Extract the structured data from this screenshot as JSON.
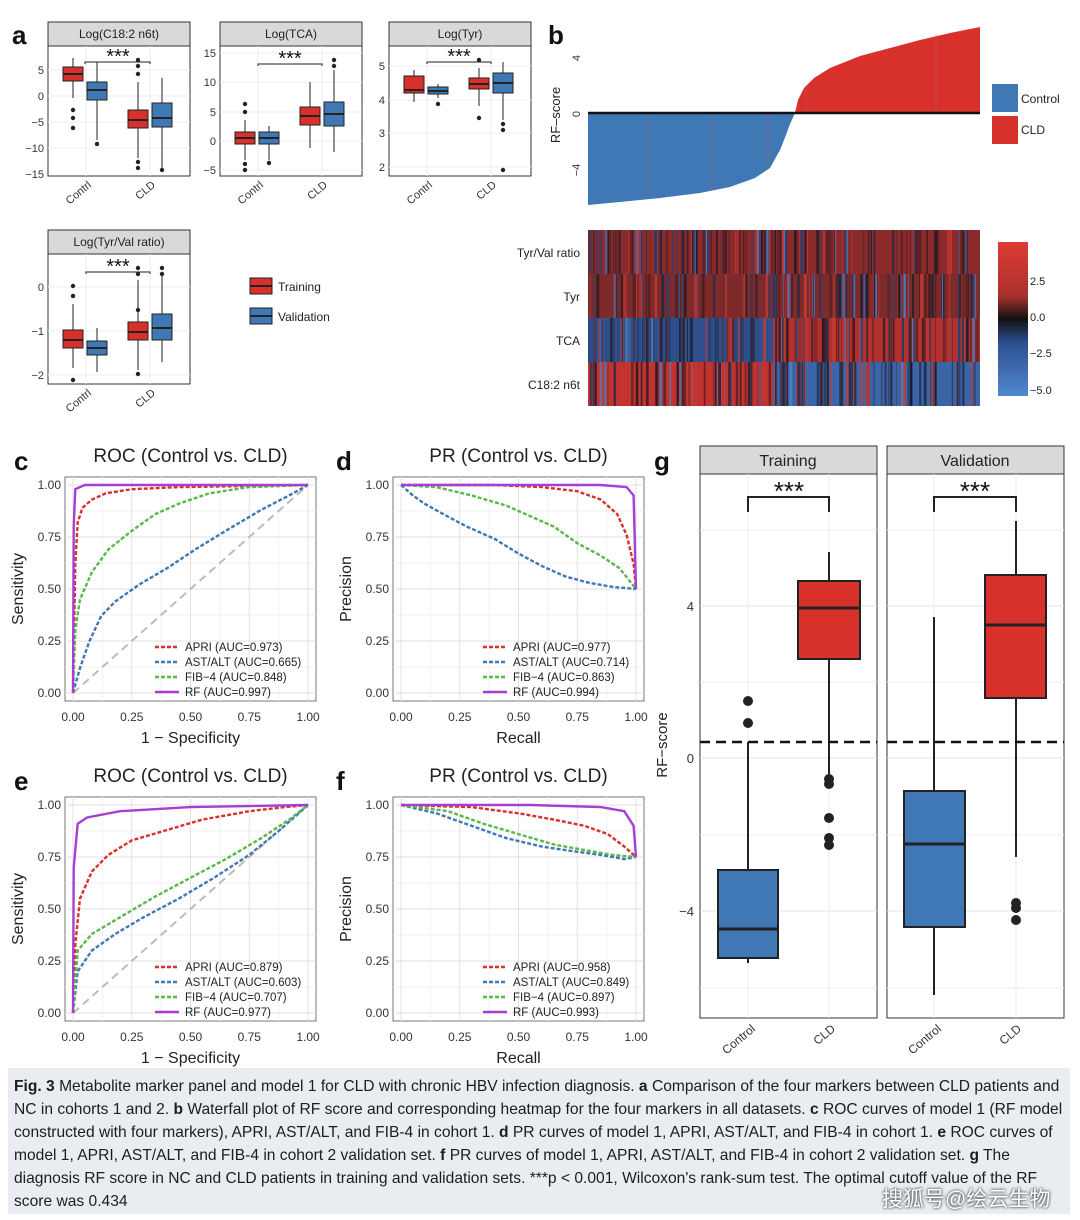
{
  "panel_letters": {
    "a": "a",
    "b": "b",
    "c": "c",
    "d": "d",
    "e": "e",
    "f": "f",
    "g": "g"
  },
  "sig_label": "***",
  "colors": {
    "training": "#d8312b",
    "validation": "#3f78b5",
    "apri": "#d8312b",
    "astalt": "#3f78b5",
    "fib4": "#5ab84a",
    "rf": "#a63fd0",
    "control_wf": "#3f78b5",
    "cld_wf": "#d8312b"
  },
  "panel_a": {
    "groups": [
      "Contrl",
      "CLD"
    ],
    "legend": {
      "training": "Training",
      "validation": "Validation"
    },
    "boxes": [
      {
        "title": "Log(C18:2 n6t)",
        "yticks": [
          "5",
          "0",
          "−5",
          "−10",
          "−15"
        ]
      },
      {
        "title": "Log(TCA)",
        "yticks": [
          "15",
          "10",
          "5",
          "0",
          "−5"
        ]
      },
      {
        "title": "Log(Tyr)",
        "yticks": [
          "5",
          "4",
          "3",
          "2"
        ]
      },
      {
        "title": "Log(Tyr/Val ratio)",
        "yticks": [
          "0",
          "−1",
          "−2"
        ]
      }
    ]
  },
  "panel_b": {
    "ylabel": "RF–score",
    "yticks": [
      "4",
      "0",
      "−4"
    ],
    "legend": {
      "control": "Control",
      "cld": "CLD"
    },
    "heatmap_rows": [
      "Tyr/Val ratio",
      "Tyr",
      "TCA",
      "C18:2 n6t"
    ],
    "colorbar_ticks": [
      "2.5",
      "0.0",
      "−2.5",
      "−5.0"
    ]
  },
  "panel_c": {
    "title": "ROC (Control vs. CLD)",
    "xlabel": "1 − Specificity",
    "ylabel": "Sensitivity",
    "xticks": [
      "0.00",
      "0.25",
      "0.50",
      "0.75",
      "1.00"
    ],
    "yticks": [
      "1.00",
      "0.75",
      "0.50",
      "0.25",
      "0.00"
    ],
    "legend": [
      "APRI (AUC=0.973)",
      "AST/ALT (AUC=0.665)",
      "FIB−4 (AUC=0.848)",
      "RF (AUC=0.997)"
    ]
  },
  "panel_d": {
    "title": "PR (Control vs. CLD)",
    "xlabel": "Recall",
    "ylabel": "Precision",
    "xticks": [
      "0.00",
      "0.25",
      "0.50",
      "0.75",
      "1.00"
    ],
    "yticks": [
      "1.00",
      "0.75",
      "0.50",
      "0.25",
      "0.00"
    ],
    "legend": [
      "APRI (AUC=0.977)",
      "AST/ALT (AUC=0.714)",
      "FIB−4 (AUC=0.863)",
      "RF (AUC=0.994)"
    ]
  },
  "panel_e": {
    "title": "ROC (Control vs. CLD)",
    "xlabel": "1 − Specificity",
    "ylabel": "Sensitivity",
    "xticks": [
      "0.00",
      "0.25",
      "0.50",
      "0.75",
      "1.00"
    ],
    "yticks": [
      "1.00",
      "0.75",
      "0.50",
      "0.25",
      "0.00"
    ],
    "legend": [
      "APRI (AUC=0.879)",
      "AST/ALT (AUC=0.603)",
      "FIB−4 (AUC=0.707)",
      "RF (AUC=0.977)"
    ]
  },
  "panel_f": {
    "title": "PR (Control vs. CLD)",
    "xlabel": "Recall",
    "ylabel": "Precision",
    "xticks": [
      "0.00",
      "0.25",
      "0.50",
      "0.75",
      "1.00"
    ],
    "yticks": [
      "1.00",
      "0.75",
      "0.50",
      "0.25",
      "0.00"
    ],
    "legend": [
      "APRI (AUC=0.958)",
      "AST/ALT (AUC=0.849)",
      "FIB−4 (AUC=0.897)",
      "RF (AUC=0.993)"
    ]
  },
  "panel_g": {
    "facets": [
      "Training",
      "Validation"
    ],
    "ylabel": "RF−score",
    "yticks": [
      "4",
      "0",
      "−4"
    ],
    "groups": [
      "Control",
      "CLD"
    ],
    "cutoff": 0.434
  },
  "caption": {
    "fig_label": "Fig. 3",
    "text": " Metabolite marker panel and model 1 for CLD with chronic HBV infection diagnosis. ",
    "a_label": "a",
    "a_text": " Comparison of the four markers between CLD patients and NC in cohorts 1 and 2. ",
    "b_label": "b",
    "b_text": " Waterfall plot of RF score and corresponding heatmap for the four markers in all datasets. ",
    "c_label": "c",
    "c_text": " ROC curves of model 1 (RF model constructed with four markers), APRI, AST/ALT, and FIB-4 in cohort 1. ",
    "d_label": "d",
    "d_text": " PR curves of model 1, APRI, AST/ALT, and FIB-4 in cohort 1. ",
    "e_label": "e",
    "e_text": " ROC curves of model 1, APRI, AST/ALT, and FIB-4 in cohort 2 validation set. ",
    "f_label": "f",
    "f_text": " PR curves of model 1, APRI, AST/ALT, and FIB-4 in cohort 2 validation set. ",
    "g_label": "g",
    "g_text": " The diagnosis RF score in NC and CLD patients in training and validation sets. ***p < 0.001, Wilcoxon's rank-sum test. The optimal cutoff value of the RF score was 0.434"
  },
  "watermark": "搜狐号@绘云生物"
}
